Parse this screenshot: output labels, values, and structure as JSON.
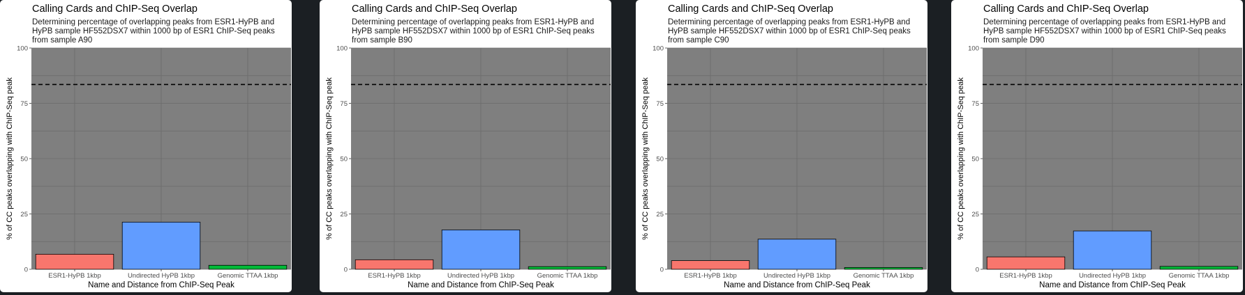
{
  "colors": {
    "panel_background": "#7f7f7f",
    "grid": "#6b6b6b",
    "reference_line": "#000000",
    "bar_fills": [
      "#f8766d",
      "#619cff",
      "#00ba38"
    ]
  },
  "chart_data": [
    {
      "type": "bar",
      "title": "Calling Cards and ChIP-Seq Overlap",
      "subtitle": "Determining percentage of overlapping peaks from ESR1-HyPB and HyPB sample HF552DSX7 within 1000 bp of ESR1 ChIP-Seq peaks from sample A90",
      "xlabel": "Name and Distance from ChIP-Seq Peak",
      "ylabel": "% of CC peaks overlapping with ChIP-Seq peak",
      "categories": [
        "ESR1-HyPB 1kbp",
        "Undirected HyPB 1kbp",
        "Genomic TTAA 1kbp"
      ],
      "values": [
        6.8,
        21.3,
        1.8
      ],
      "ylim": [
        0,
        100
      ],
      "yticks": [
        "0",
        "25",
        "50",
        "75",
        "100"
      ],
      "reference_line": 83.5,
      "grid": true,
      "legend": "none"
    },
    {
      "type": "bar",
      "title": "Calling Cards and ChIP-Seq Overlap",
      "subtitle": "Determining percentage of overlapping peaks from ESR1-HyPB and HyPB sample HF552DSX7 within 1000 bp of ESR1 ChIP-Seq peaks from sample B90",
      "xlabel": "Name and Distance from ChIP-Seq Peak",
      "ylabel": "% of CC peaks overlapping with ChIP-Seq peak",
      "categories": [
        "ESR1-HyPB 1kbp",
        "Undirected HyPB 1kbp",
        "Genomic TTAA 1kbp"
      ],
      "values": [
        4.3,
        17.8,
        1.2
      ],
      "ylim": [
        0,
        100
      ],
      "yticks": [
        "0",
        "25",
        "50",
        "75",
        "100"
      ],
      "reference_line": 83.5,
      "grid": true,
      "legend": "none"
    },
    {
      "type": "bar",
      "title": "Calling Cards and ChIP-Seq Overlap",
      "subtitle": "Determining percentage of overlapping peaks from ESR1-HyPB and HyPB sample HF552DSX7 within 1000 bp of ESR1 ChIP-Seq peaks from sample C90",
      "xlabel": "Name and Distance from ChIP-Seq Peak",
      "ylabel": "% of CC peaks overlapping with ChIP-Seq peak",
      "categories": [
        "ESR1-HyPB 1kbp",
        "Undirected HyPB 1kbp",
        "Genomic TTAA 1kbp"
      ],
      "values": [
        3.9,
        13.6,
        0.8
      ],
      "ylim": [
        0,
        100
      ],
      "yticks": [
        "0",
        "25",
        "50",
        "75",
        "100"
      ],
      "reference_line": 83.5,
      "grid": true,
      "legend": "none"
    },
    {
      "type": "bar",
      "title": "Calling Cards and ChIP-Seq Overlap",
      "subtitle": "Determining percentage of overlapping peaks from ESR1-HyPB and HyPB sample HF552DSX7 within 1000 bp of ESR1 ChIP-Seq peaks from sample D90",
      "xlabel": "Name and Distance from ChIP-Seq Peak",
      "ylabel": "% of CC peaks overlapping with ChIP-Seq peak",
      "categories": [
        "ESR1-HyPB 1kbp",
        "Undirected HyPB 1kbp",
        "Genomic TTAA 1kbp"
      ],
      "values": [
        5.6,
        17.3,
        1.3
      ],
      "ylim": [
        0,
        100
      ],
      "yticks": [
        "0",
        "25",
        "50",
        "75",
        "100"
      ],
      "reference_line": 83.5,
      "grid": true,
      "legend": "none"
    }
  ]
}
